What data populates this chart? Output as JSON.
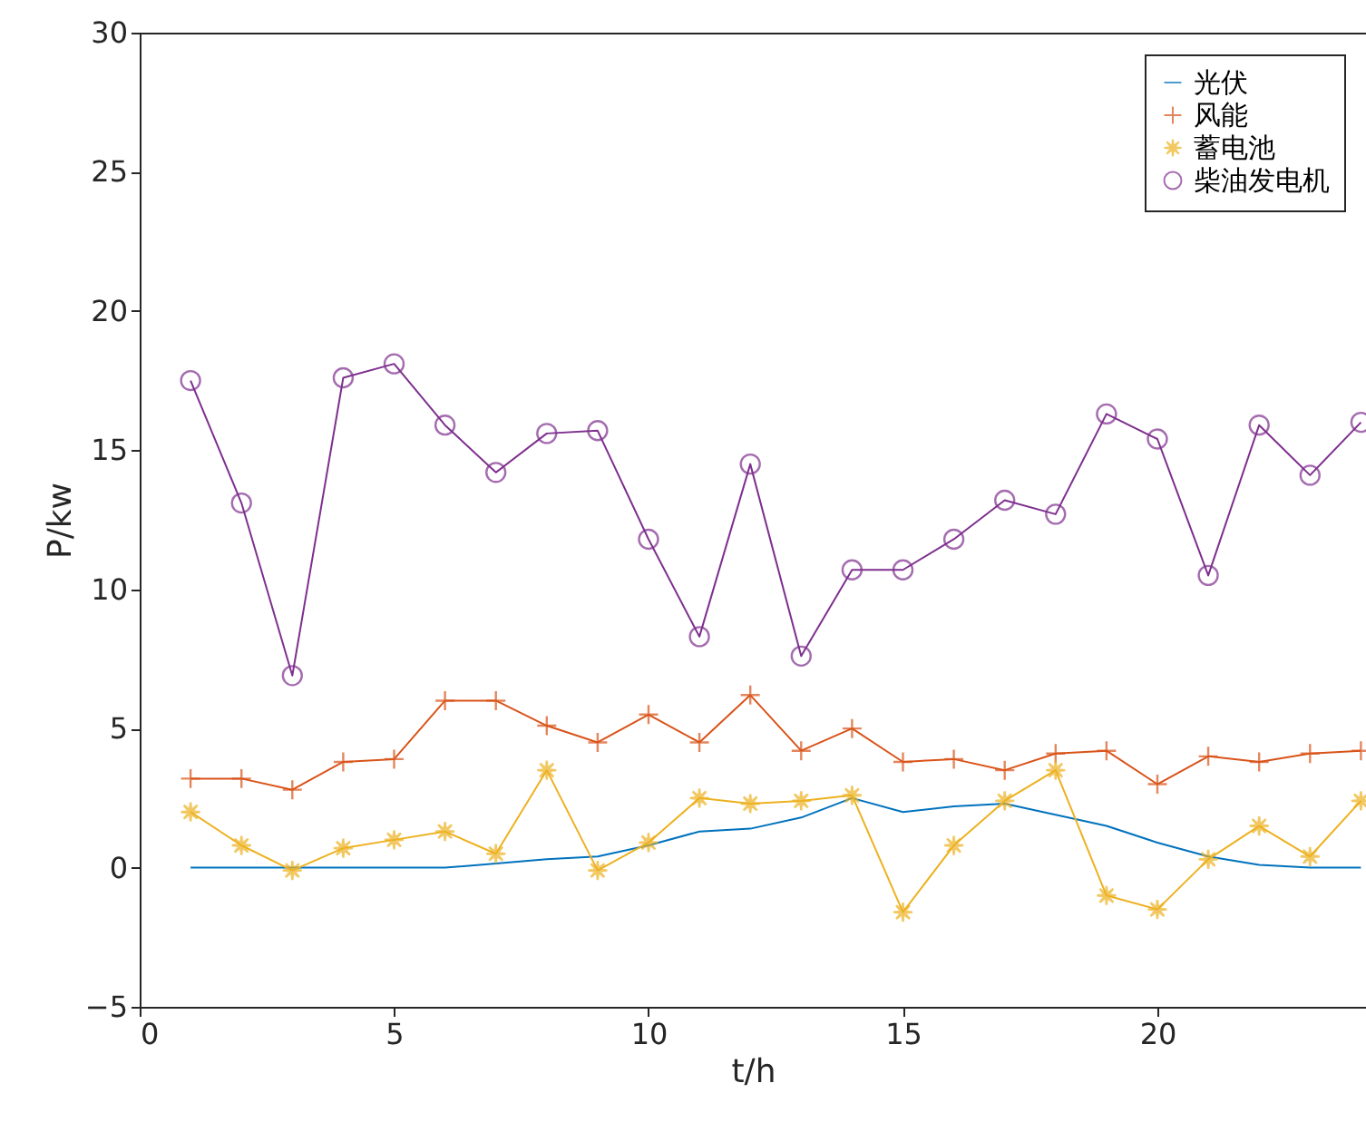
{
  "chart_data": {
    "type": "line",
    "xlabel": "t/h",
    "ylabel": "P/kw",
    "x": [
      1,
      2,
      3,
      4,
      5,
      6,
      7,
      8,
      9,
      10,
      11,
      12,
      13,
      14,
      15,
      16,
      17,
      18,
      19,
      20,
      21,
      22,
      23,
      24
    ],
    "xlim": [
      0,
      24.1
    ],
    "xticks": [
      0,
      5,
      10,
      15,
      20
    ],
    "ylim": [
      -5,
      30
    ],
    "yticks": [
      -5,
      0,
      5,
      10,
      15,
      20,
      25,
      30
    ],
    "grid": false,
    "legend": "top right",
    "series": [
      {
        "name": "光伏",
        "color": "#0072bd",
        "marker": "none",
        "values": [
          0,
          0,
          0,
          0,
          0,
          0,
          0.15,
          0.3,
          0.4,
          0.8,
          1.3,
          1.4,
          1.8,
          2.5,
          2.0,
          2.2,
          2.3,
          1.9,
          1.5,
          0.9,
          0.4,
          0.1,
          0,
          0
        ]
      },
      {
        "name": "风能",
        "color": "#d95319",
        "marker": "cross",
        "values": [
          3.2,
          3.2,
          2.8,
          3.8,
          3.9,
          6.0,
          6.0,
          5.1,
          4.5,
          5.5,
          4.5,
          6.2,
          4.2,
          5.0,
          3.8,
          3.9,
          3.5,
          4.1,
          4.2,
          3.0,
          4.0,
          3.8,
          4.1,
          4.2
        ]
      },
      {
        "name": "蓄电池",
        "color": "#edb120",
        "marker": "star",
        "values": [
          2.0,
          0.8,
          -0.1,
          0.7,
          1.0,
          1.3,
          0.5,
          3.5,
          -0.1,
          0.9,
          2.5,
          2.3,
          2.4,
          2.6,
          -1.6,
          0.8,
          2.4,
          3.5,
          -1.0,
          -1.5,
          0.3,
          1.5,
          0.4,
          2.4
        ]
      },
      {
        "name": "柴油发电机",
        "color": "#7e2f8e",
        "marker": "circle",
        "values": [
          17.5,
          13.1,
          6.9,
          17.6,
          18.1,
          15.9,
          14.2,
          15.6,
          15.7,
          11.8,
          8.3,
          14.5,
          7.6,
          10.7,
          10.7,
          11.8,
          13.2,
          12.7,
          16.3,
          15.4,
          10.5,
          15.9,
          14.1,
          16.0
        ]
      }
    ]
  }
}
